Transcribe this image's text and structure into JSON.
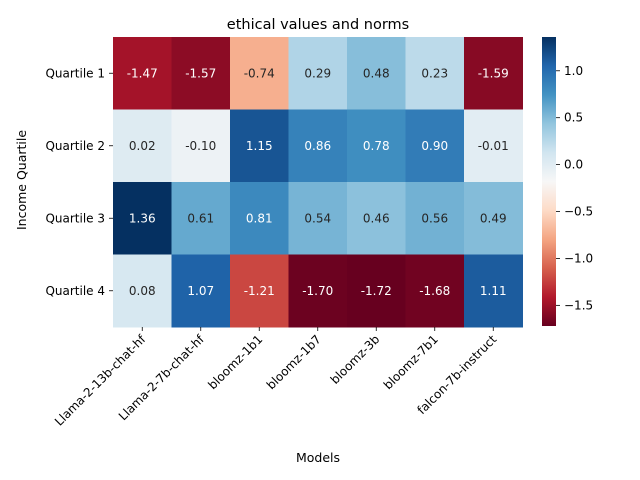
{
  "chart_data": {
    "type": "heatmap",
    "title": "ethical values and norms",
    "xlabel": "Models",
    "ylabel": "Income Quartile",
    "columns": [
      "Llama-2-13b-chat-hf",
      "Llama-2-7b-chat-hf",
      "bloomz-1b1",
      "bloomz-1b7",
      "bloomz-3b",
      "bloomz-7b1",
      "falcon-7b-instruct"
    ],
    "rows": [
      "Quartile 1",
      "Quartile 2",
      "Quartile 3",
      "Quartile 4"
    ],
    "values": [
      [
        -1.47,
        -1.57,
        -0.74,
        0.29,
        0.48,
        0.23,
        -1.59
      ],
      [
        0.02,
        -0.1,
        1.15,
        0.86,
        0.78,
        0.9,
        -0.01
      ],
      [
        1.36,
        0.61,
        0.81,
        0.54,
        0.46,
        0.56,
        0.49
      ],
      [
        0.08,
        1.07,
        -1.21,
        -1.7,
        -1.72,
        -1.68,
        1.11
      ]
    ],
    "cell_labels": [
      [
        "-1.47",
        "-1.57",
        "-0.74",
        "0.29",
        "0.48",
        "0.23",
        "-1.59"
      ],
      [
        "0.02",
        "-0.10",
        "1.15",
        "0.86",
        "0.78",
        "0.90",
        "-0.01"
      ],
      [
        "1.36",
        "0.61",
        "0.81",
        "0.54",
        "0.46",
        "0.56",
        "0.49"
      ],
      [
        "0.08",
        "1.07",
        "-1.21",
        "-1.70",
        "-1.72",
        "-1.68",
        "1.11"
      ]
    ],
    "colormap": "RdBu",
    "color_range": [
      -1.72,
      1.36
    ],
    "colorbar_ticks": [
      1.0,
      0.5,
      0.0,
      -0.5,
      -1.0,
      -1.5
    ],
    "colorbar_tick_labels": [
      "1.0",
      "0.5",
      "0.0",
      "−0.5",
      "−1.0",
      "−1.5"
    ],
    "annotated": true,
    "grid": false
  }
}
